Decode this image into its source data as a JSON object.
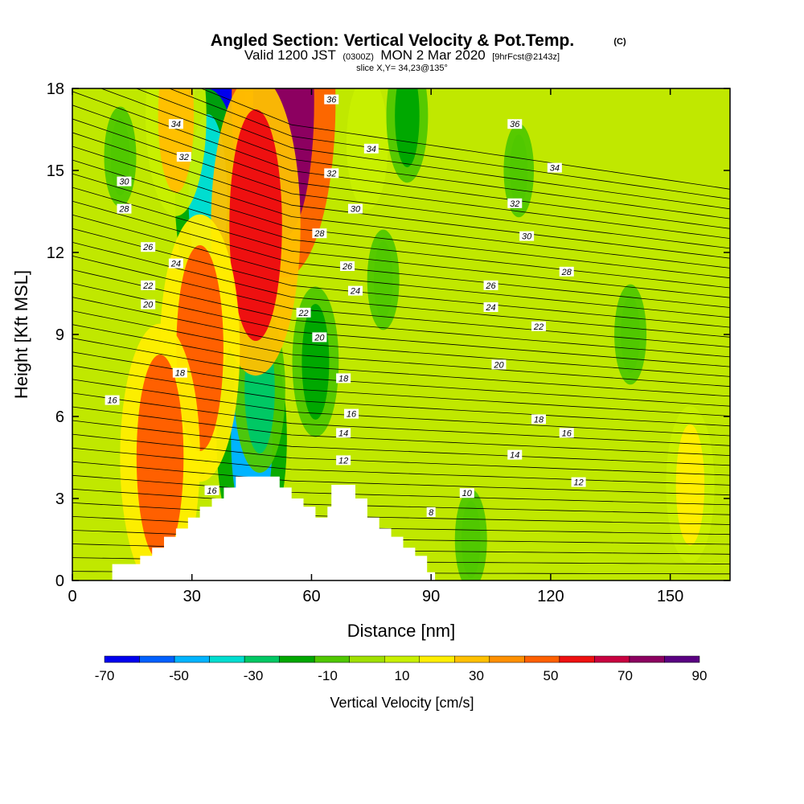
{
  "title": {
    "main": "Angled Section: Vertical Velocity & Pot.Temp.",
    "copyright": "(C)",
    "valid_prefix": "Valid 1200 JST",
    "utc": "(0300Z)",
    "date": "MON 2 Mar 2020",
    "forecast": "[9hrFcst@2143z]",
    "slice": "slice X,Y= 34,23@135°"
  },
  "chart_data": {
    "type": "heatmap",
    "xlabel": "Distance [nm]",
    "ylabel": "Height [Kft MSL]",
    "xlim": [
      0,
      165
    ],
    "ylim": [
      0,
      18
    ],
    "x_ticks": [
      0,
      30,
      60,
      90,
      120,
      150
    ],
    "y_ticks": [
      0,
      3,
      6,
      9,
      12,
      15,
      18
    ],
    "colorbar": {
      "title": "Vertical Velocity [cm/s]",
      "tick_labels": [
        "-70",
        "-50",
        "-30",
        "-10",
        "10",
        "30",
        "50",
        "70",
        "90"
      ],
      "levels": [
        -70,
        -60,
        -50,
        -40,
        -30,
        -20,
        -10,
        0,
        10,
        20,
        30,
        40,
        50,
        60,
        70,
        80,
        90
      ],
      "colors": [
        "#0000ee",
        "#0060ff",
        "#00b4ff",
        "#00ddd0",
        "#00c864",
        "#00a800",
        "#50c800",
        "#a0e000",
        "#c8f000",
        "#ffee00",
        "#ffc000",
        "#ff9000",
        "#ff6000",
        "#ee1010",
        "#c80040",
        "#8c0060",
        "#5a0082"
      ]
    },
    "velocity_features": [
      {
        "x": 37,
        "y": 16.5,
        "value": -65
      },
      {
        "x": 34,
        "y": 14.0,
        "value": -40
      },
      {
        "x": 45,
        "y": 5.2,
        "value": -45
      },
      {
        "x": 47,
        "y": 7.0,
        "value": -25
      },
      {
        "x": 53,
        "y": 17.5,
        "value": 80
      },
      {
        "x": 46,
        "y": 13.0,
        "value": 65
      },
      {
        "x": 32,
        "y": 8.5,
        "value": 55
      },
      {
        "x": 22,
        "y": 4.5,
        "value": 55
      },
      {
        "x": 26,
        "y": 17.0,
        "value": 35
      },
      {
        "x": 74,
        "y": 16.0,
        "value": 15
      },
      {
        "x": 84,
        "y": 17.0,
        "value": -15
      },
      {
        "x": 61,
        "y": 8.0,
        "value": -20
      },
      {
        "x": 78,
        "y": 11.0,
        "value": -5
      },
      {
        "x": 100,
        "y": 1.5,
        "value": -5
      },
      {
        "x": 12,
        "y": 15.5,
        "value": -5
      },
      {
        "x": 155,
        "y": 3.5,
        "value": 22
      },
      {
        "x": 140,
        "y": 9.0,
        "value": -5
      },
      {
        "x": 112,
        "y": 15.0,
        "value": -3
      }
    ],
    "terrain": [
      [
        0,
        0
      ],
      [
        10,
        0
      ],
      [
        10,
        0.6
      ],
      [
        17,
        0.6
      ],
      [
        17,
        0.9
      ],
      [
        20,
        0.9
      ],
      [
        20,
        1.2
      ],
      [
        23,
        1.2
      ],
      [
        23,
        1.6
      ],
      [
        26,
        1.6
      ],
      [
        26,
        1.9
      ],
      [
        29,
        1.9
      ],
      [
        29,
        2.3
      ],
      [
        32,
        2.3
      ],
      [
        32,
        2.7
      ],
      [
        35,
        2.7
      ],
      [
        35,
        3.0
      ],
      [
        38,
        3.0
      ],
      [
        38,
        3.4
      ],
      [
        41,
        3.4
      ],
      [
        41,
        3.8
      ],
      [
        52,
        3.8
      ],
      [
        52,
        3.4
      ],
      [
        55,
        3.4
      ],
      [
        55,
        3.0
      ],
      [
        58,
        3.0
      ],
      [
        58,
        2.7
      ],
      [
        61,
        2.7
      ],
      [
        61,
        2.3
      ],
      [
        64,
        2.3
      ],
      [
        64,
        2.7
      ],
      [
        65,
        2.7
      ],
      [
        65,
        3.5
      ],
      [
        71,
        3.5
      ],
      [
        71,
        3.0
      ],
      [
        74,
        3.0
      ],
      [
        74,
        2.3
      ],
      [
        77,
        2.3
      ],
      [
        77,
        1.9
      ],
      [
        80,
        1.9
      ],
      [
        80,
        1.6
      ],
      [
        83,
        1.6
      ],
      [
        83,
        1.2
      ],
      [
        86,
        1.2
      ],
      [
        86,
        0.9
      ],
      [
        89,
        0.9
      ],
      [
        89,
        0.3
      ],
      [
        91,
        0.3
      ],
      [
        91,
        0
      ],
      [
        165,
        0
      ]
    ],
    "theta_labels": [
      {
        "text": "36",
        "x": 65,
        "y": 17.6
      },
      {
        "text": "34",
        "x": 26,
        "y": 16.7
      },
      {
        "text": "32",
        "x": 28,
        "y": 15.5
      },
      {
        "text": "30",
        "x": 13,
        "y": 14.6
      },
      {
        "text": "28",
        "x": 13,
        "y": 13.6
      },
      {
        "text": "26",
        "x": 19,
        "y": 12.2
      },
      {
        "text": "24",
        "x": 26,
        "y": 11.6
      },
      {
        "text": "22",
        "x": 19,
        "y": 10.8
      },
      {
        "text": "20",
        "x": 19,
        "y": 10.1
      },
      {
        "text": "18",
        "x": 27,
        "y": 7.6
      },
      {
        "text": "16",
        "x": 10,
        "y": 6.6
      },
      {
        "text": "16",
        "x": 35,
        "y": 3.3
      },
      {
        "text": "36",
        "x": 111,
        "y": 16.7
      },
      {
        "text": "34",
        "x": 75,
        "y": 15.8
      },
      {
        "text": "32",
        "x": 65,
        "y": 14.9
      },
      {
        "text": "30",
        "x": 71,
        "y": 13.6
      },
      {
        "text": "28",
        "x": 62,
        "y": 12.7
      },
      {
        "text": "26",
        "x": 69,
        "y": 11.5
      },
      {
        "text": "24",
        "x": 71,
        "y": 10.6
      },
      {
        "text": "22",
        "x": 58,
        "y": 9.8
      },
      {
        "text": "20",
        "x": 62,
        "y": 8.9
      },
      {
        "text": "18",
        "x": 68,
        "y": 7.4
      },
      {
        "text": "16",
        "x": 70,
        "y": 6.1
      },
      {
        "text": "14",
        "x": 68,
        "y": 5.4
      },
      {
        "text": "12",
        "x": 68,
        "y": 4.4
      },
      {
        "text": "10",
        "x": 99,
        "y": 3.2
      },
      {
        "text": "8",
        "x": 90,
        "y": 2.5
      },
      {
        "text": "34",
        "x": 121,
        "y": 15.1
      },
      {
        "text": "32",
        "x": 111,
        "y": 13.8
      },
      {
        "text": "30",
        "x": 114,
        "y": 12.6
      },
      {
        "text": "28",
        "x": 124,
        "y": 11.3
      },
      {
        "text": "26",
        "x": 105,
        "y": 10.8
      },
      {
        "text": "24",
        "x": 105,
        "y": 10.0
      },
      {
        "text": "22",
        "x": 117,
        "y": 9.3
      },
      {
        "text": "20",
        "x": 107,
        "y": 7.9
      },
      {
        "text": "18",
        "x": 117,
        "y": 5.9
      },
      {
        "text": "16",
        "x": 124,
        "y": 5.4
      },
      {
        "text": "14",
        "x": 111,
        "y": 4.6
      },
      {
        "text": "12",
        "x": 127,
        "y": 3.6
      }
    ]
  }
}
